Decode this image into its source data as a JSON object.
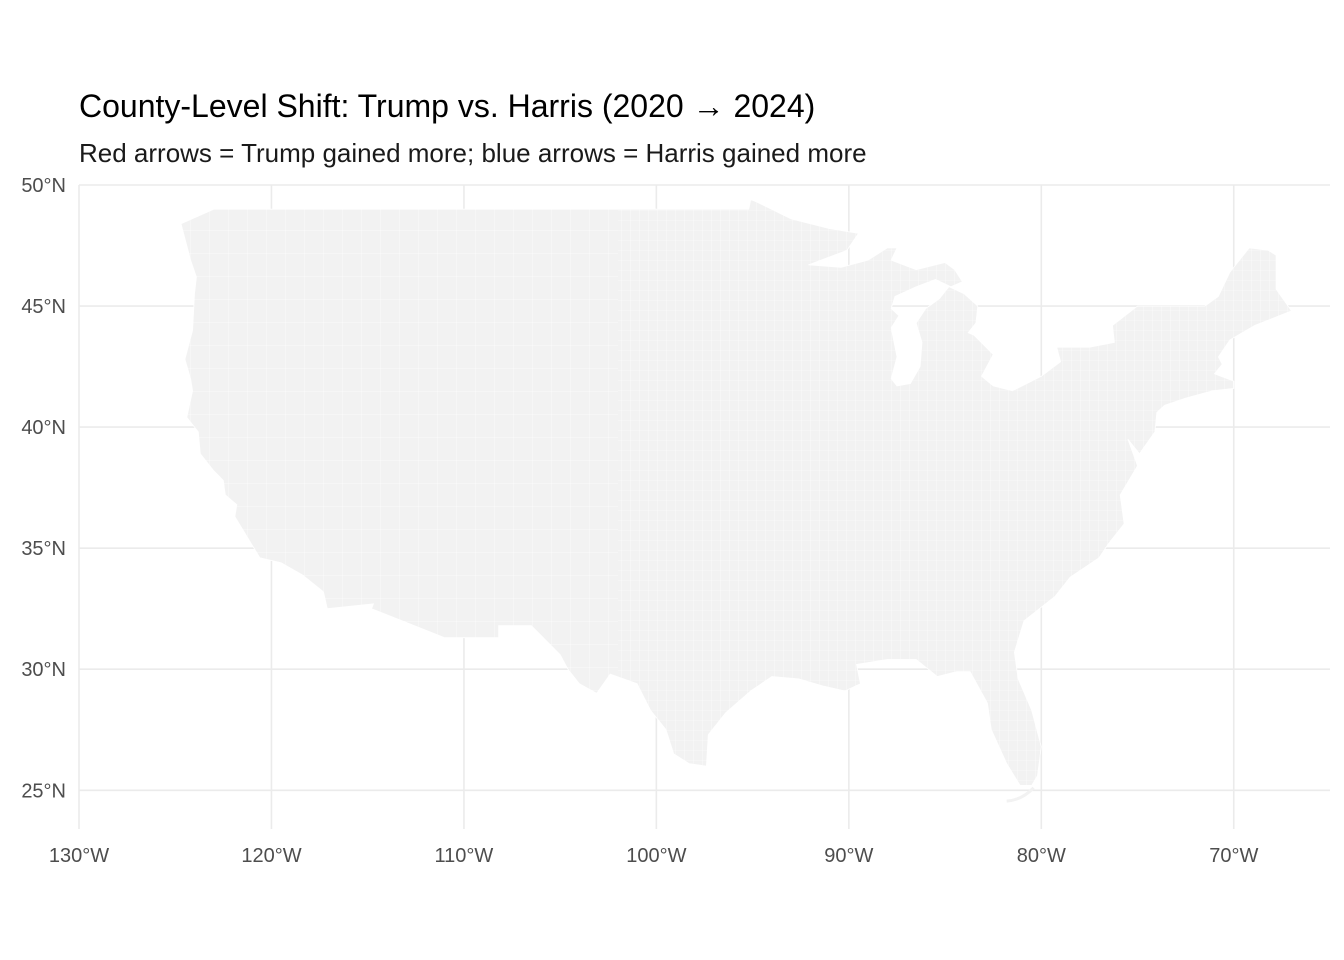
{
  "title": "County-Level Shift: Trump vs. Harris (2020 → 2024)",
  "subtitle": "Red arrows = Trump gained more; blue arrows = Harris gained more",
  "colors": {
    "land_fill": "#f2f2f2",
    "county_border": "#ffffff",
    "gridline": "#ebebeb",
    "tick_text": "#4d4d4d",
    "trump_arrow": "#d62728",
    "harris_arrow": "#1f4fbf"
  },
  "map": {
    "projection": "equirectangular",
    "lon_range": [
      -130,
      -65
    ],
    "lat_range": [
      23.4,
      50
    ],
    "x_ticks": [
      {
        "value": -130,
        "label": "130°W"
      },
      {
        "value": -120,
        "label": "120°W"
      },
      {
        "value": -110,
        "label": "110°W"
      },
      {
        "value": -100,
        "label": "100°W"
      },
      {
        "value": -90,
        "label": "90°W"
      },
      {
        "value": -80,
        "label": "80°W"
      },
      {
        "value": -70,
        "label": "70°W"
      }
    ],
    "y_ticks": [
      {
        "value": 25,
        "label": "25°N"
      },
      {
        "value": 30,
        "label": "30°N"
      },
      {
        "value": 35,
        "label": "35°N"
      },
      {
        "value": 40,
        "label": "40°N"
      },
      {
        "value": 45,
        "label": "45°N"
      },
      {
        "value": 50,
        "label": "50°N"
      }
    ],
    "grid": true,
    "arrows": [],
    "outline": [
      [
        -124.7,
        48.4
      ],
      [
        -123.0,
        49.0
      ],
      [
        -95.2,
        49.0
      ],
      [
        -95.1,
        49.4
      ],
      [
        -94.8,
        49.3
      ],
      [
        -93.0,
        48.6
      ],
      [
        -91.0,
        48.2
      ],
      [
        -89.5,
        48.0
      ],
      [
        -90.1,
        47.3
      ],
      [
        -92.1,
        46.7
      ],
      [
        -90.4,
        46.6
      ],
      [
        -89.0,
        46.9
      ],
      [
        -88.0,
        47.4
      ],
      [
        -87.5,
        47.4
      ],
      [
        -87.8,
        46.9
      ],
      [
        -86.5,
        46.5
      ],
      [
        -85.0,
        46.8
      ],
      [
        -84.5,
        46.5
      ],
      [
        -84.1,
        46.0
      ],
      [
        -84.7,
        45.8
      ],
      [
        -85.5,
        46.1
      ],
      [
        -86.5,
        45.8
      ],
      [
        -87.6,
        45.4
      ],
      [
        -87.8,
        44.9
      ],
      [
        -87.4,
        44.6
      ],
      [
        -87.8,
        44.1
      ],
      [
        -87.5,
        42.9
      ],
      [
        -87.8,
        42.0
      ],
      [
        -87.5,
        41.7
      ],
      [
        -86.8,
        41.8
      ],
      [
        -86.3,
        42.5
      ],
      [
        -86.2,
        43.5
      ],
      [
        -86.5,
        44.3
      ],
      [
        -86.0,
        44.9
      ],
      [
        -85.3,
        45.3
      ],
      [
        -84.8,
        45.8
      ],
      [
        -84.0,
        45.5
      ],
      [
        -83.3,
        45.0
      ],
      [
        -83.4,
        44.3
      ],
      [
        -83.8,
        43.9
      ],
      [
        -83.5,
        43.8
      ],
      [
        -82.5,
        43.0
      ],
      [
        -83.1,
        42.1
      ],
      [
        -82.5,
        41.7
      ],
      [
        -81.5,
        41.5
      ],
      [
        -80.0,
        42.1
      ],
      [
        -79.0,
        42.7
      ],
      [
        -79.2,
        43.3
      ],
      [
        -77.5,
        43.3
      ],
      [
        -76.2,
        43.5
      ],
      [
        -76.3,
        44.2
      ],
      [
        -75.0,
        45.0
      ],
      [
        -71.5,
        45.0
      ],
      [
        -70.8,
        45.4
      ],
      [
        -70.2,
        46.4
      ],
      [
        -69.2,
        47.4
      ],
      [
        -68.2,
        47.3
      ],
      [
        -67.8,
        47.1
      ],
      [
        -67.8,
        45.7
      ],
      [
        -67.0,
        44.8
      ],
      [
        -68.9,
        44.2
      ],
      [
        -70.2,
        43.6
      ],
      [
        -70.8,
        42.9
      ],
      [
        -70.6,
        42.6
      ],
      [
        -71.0,
        42.2
      ],
      [
        -70.0,
        41.9
      ],
      [
        -70.0,
        41.6
      ],
      [
        -71.1,
        41.5
      ],
      [
        -72.5,
        41.2
      ],
      [
        -73.6,
        40.9
      ],
      [
        -74.0,
        40.6
      ],
      [
        -74.1,
        39.8
      ],
      [
        -74.9,
        38.9
      ],
      [
        -75.5,
        39.5
      ],
      [
        -75.0,
        38.4
      ],
      [
        -75.9,
        37.2
      ],
      [
        -75.7,
        36.0
      ],
      [
        -76.5,
        35.2
      ],
      [
        -77.0,
        34.6
      ],
      [
        -78.5,
        33.8
      ],
      [
        -79.3,
        33.0
      ],
      [
        -80.9,
        32.0
      ],
      [
        -81.4,
        30.7
      ],
      [
        -81.2,
        29.6
      ],
      [
        -80.5,
        28.3
      ],
      [
        -80.0,
        26.8
      ],
      [
        -80.2,
        25.6
      ],
      [
        -80.5,
        25.2
      ],
      [
        -81.1,
        25.2
      ],
      [
        -81.8,
        26.1
      ],
      [
        -82.6,
        27.5
      ],
      [
        -82.8,
        28.6
      ],
      [
        -83.7,
        29.9
      ],
      [
        -84.4,
        29.9
      ],
      [
        -85.4,
        29.7
      ],
      [
        -86.5,
        30.4
      ],
      [
        -88.0,
        30.4
      ],
      [
        -89.6,
        30.2
      ],
      [
        -89.4,
        29.4
      ],
      [
        -90.2,
        29.1
      ],
      [
        -91.3,
        29.3
      ],
      [
        -92.6,
        29.6
      ],
      [
        -94.0,
        29.7
      ],
      [
        -95.1,
        29.1
      ],
      [
        -96.4,
        28.2
      ],
      [
        -97.3,
        27.3
      ],
      [
        -97.4,
        26.0
      ],
      [
        -98.3,
        26.1
      ],
      [
        -99.1,
        26.5
      ],
      [
        -99.5,
        27.5
      ],
      [
        -100.3,
        28.3
      ],
      [
        -101.0,
        29.4
      ],
      [
        -102.4,
        29.8
      ],
      [
        -103.1,
        29.0
      ],
      [
        -104.0,
        29.4
      ],
      [
        -104.6,
        30.0
      ],
      [
        -105.0,
        30.6
      ],
      [
        -106.5,
        31.8
      ],
      [
        -108.2,
        31.8
      ],
      [
        -108.2,
        31.3
      ],
      [
        -111.0,
        31.3
      ],
      [
        -114.8,
        32.5
      ],
      [
        -114.7,
        32.7
      ],
      [
        -117.1,
        32.5
      ],
      [
        -117.3,
        33.2
      ],
      [
        -118.4,
        33.9
      ],
      [
        -119.5,
        34.4
      ],
      [
        -120.6,
        34.6
      ],
      [
        -121.9,
        36.3
      ],
      [
        -121.8,
        36.8
      ],
      [
        -122.4,
        37.2
      ],
      [
        -122.5,
        37.8
      ],
      [
        -123.0,
        38.2
      ],
      [
        -123.7,
        38.9
      ],
      [
        -123.8,
        39.8
      ],
      [
        -124.4,
        40.4
      ],
      [
        -124.1,
        41.5
      ],
      [
        -124.2,
        42.0
      ],
      [
        -124.5,
        42.8
      ],
      [
        -124.1,
        44.0
      ],
      [
        -124.0,
        45.5
      ],
      [
        -123.9,
        46.2
      ],
      [
        -124.2,
        46.9
      ],
      [
        -124.7,
        48.4
      ]
    ]
  }
}
